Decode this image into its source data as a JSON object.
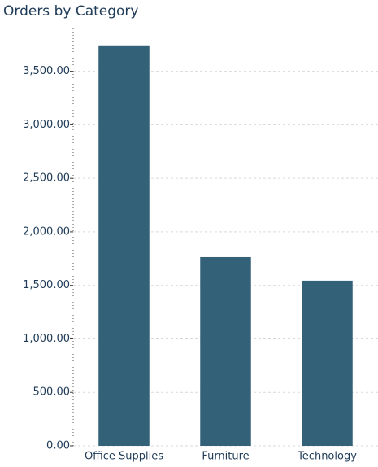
{
  "chart_data": {
    "type": "bar",
    "title": "Orders by Category",
    "categories": [
      "Office Supplies",
      "Furniture",
      "Technology"
    ],
    "values": [
      3742,
      1764,
      1544
    ],
    "color": "#336178",
    "ylim": [
      0,
      3900
    ],
    "yticks": [
      {
        "value": 0,
        "label": "0.00"
      },
      {
        "value": 500,
        "label": "500.00"
      },
      {
        "value": 1000,
        "label": "1,000.00"
      },
      {
        "value": 1500,
        "label": "1,500.00"
      },
      {
        "value": 2000,
        "label": "2,000.00"
      },
      {
        "value": 2500,
        "label": "2,500.00"
      },
      {
        "value": 3000,
        "label": "3,000.00"
      },
      {
        "value": 3500,
        "label": "3,500.00"
      }
    ],
    "grid": true
  }
}
